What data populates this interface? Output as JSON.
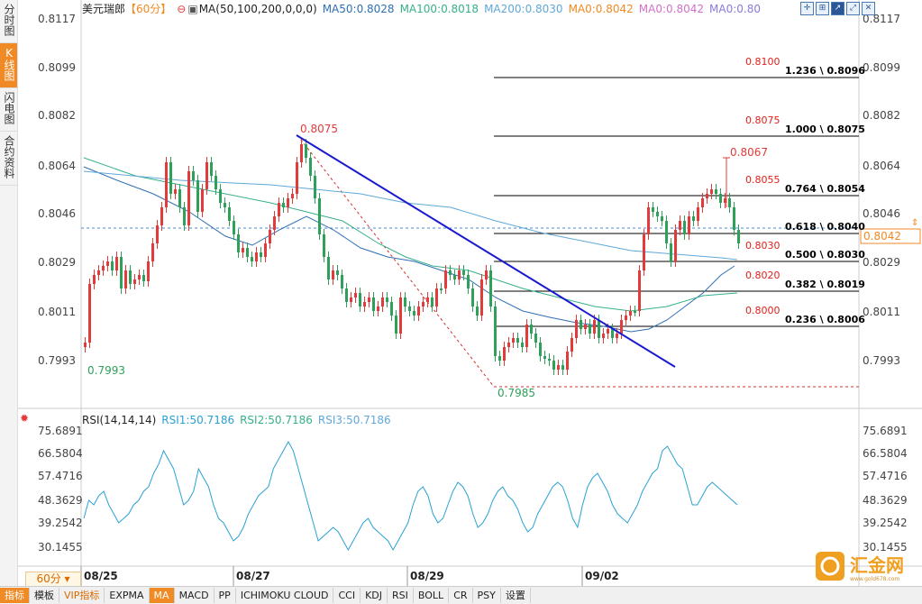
{
  "left_tabs": [
    {
      "label": "分时图",
      "active": false
    },
    {
      "label": "K线图",
      "active": true
    },
    {
      "label": "闪电图",
      "active": false
    },
    {
      "label": "合约资料",
      "active": false
    }
  ],
  "header": {
    "symbol": "美元瑞郎",
    "period_tag": "【60分】",
    "ma_params": "MA(50,100,200,0,0,0)",
    "ma50": "MA50:0.8028",
    "ma100": "MA100:0.8018",
    "ma200": "MA200:0.8030",
    "ma0a": "MA0:0.8042",
    "ma0b": "MA0:0.8042",
    "ma0c": "MA0:0.80"
  },
  "colors": {
    "up": "#e23b3b",
    "down": "#2fa05a",
    "ma50": "#2f6fb5",
    "ma100": "#35b08a",
    "ma200": "#5fa8d8",
    "rsi": "#2aa1d3",
    "trendline": "#1a1acf",
    "fib": "#000000",
    "fib_label": "#e0201a"
  },
  "price_axis": [
    "0.8117",
    "0.8099",
    "0.8082",
    "0.8064",
    "0.8046",
    "0.8029",
    "0.8011",
    "0.7993"
  ],
  "current_price": "0.8042",
  "rsi_axis": [
    "75.6891",
    "66.5804",
    "57.4716",
    "48.3629",
    "39.2542",
    "30.1455"
  ],
  "rsi_header": {
    "name": "RSI(14,14,14)",
    "rsi1": "RSI1:50.7186",
    "rsi2": "RSI2:50.7186",
    "rsi3": "RSI3:50.7186"
  },
  "date_labels": [
    "08/25",
    "08/27",
    "08/29",
    "09/02"
  ],
  "annotations": {
    "high1": "0.8075",
    "low1": "0.7993",
    "low2": "0.7985",
    "high2": "0.8067"
  },
  "fib_levels": [
    {
      "ratio_label": "1.236 \\ 0.8096",
      "price_label": "0.8100"
    },
    {
      "ratio_label": "1.000 \\ 0.8075",
      "price_label": "0.8075"
    },
    {
      "ratio_label": "0.764 \\ 0.8054",
      "price_label": "0.8055"
    },
    {
      "ratio_label": "0.618 \\ 0.8040",
      "price_label": ""
    },
    {
      "ratio_label": "0.500 \\ 0.8030",
      "price_label": "0.8030"
    },
    {
      "ratio_label": "0.382 \\ 0.8019",
      "price_label": "0.8020"
    },
    {
      "ratio_label": "0.236 \\ 0.8006",
      "price_label": "0.8000"
    }
  ],
  "period_selector": "60分",
  "toolbar": [
    "指标",
    "模板",
    "VIP指标",
    "EXPMA",
    "MA",
    "MACD",
    "PP",
    "ICHIMOKU CLOUD",
    "CCI",
    "KDJ",
    "RSI",
    "BOLL",
    "CR",
    "PSY",
    "设置"
  ],
  "logo": {
    "text": "汇金网",
    "sub": "www.gold678.com"
  }
}
